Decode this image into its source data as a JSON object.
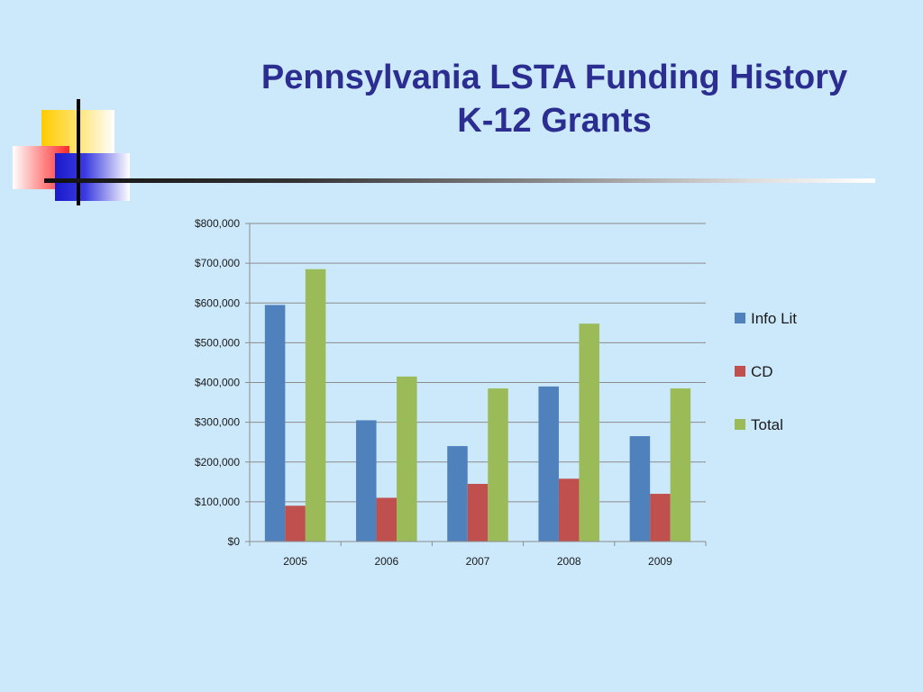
{
  "slide": {
    "title_line1": "Pennsylvania LSTA Funding History",
    "title_line2": "K-12 Grants"
  },
  "chart_data": {
    "type": "bar",
    "title": "",
    "xlabel": "",
    "ylabel": "",
    "categories": [
      "2005",
      "2006",
      "2007",
      "2008",
      "2009"
    ],
    "ylim": [
      0,
      800000
    ],
    "y_ticks": [
      0,
      100000,
      200000,
      300000,
      400000,
      500000,
      600000,
      700000,
      800000
    ],
    "y_tick_labels": [
      "$0",
      "$100,000",
      "$200,000",
      "$300,000",
      "$400,000",
      "$500,000",
      "$600,000",
      "$700,000",
      "$800,000"
    ],
    "grid": true,
    "legend_position": "right",
    "series": [
      {
        "name": "Info Lit",
        "color": "#4f81bd",
        "values": [
          595000,
          305000,
          240000,
          390000,
          265000
        ]
      },
      {
        "name": "CD",
        "color": "#c0504d",
        "values": [
          90000,
          110000,
          145000,
          158000,
          120000
        ]
      },
      {
        "name": "Total",
        "color": "#9bbb59",
        "values": [
          685000,
          415000,
          385000,
          548000,
          385000
        ]
      }
    ]
  }
}
